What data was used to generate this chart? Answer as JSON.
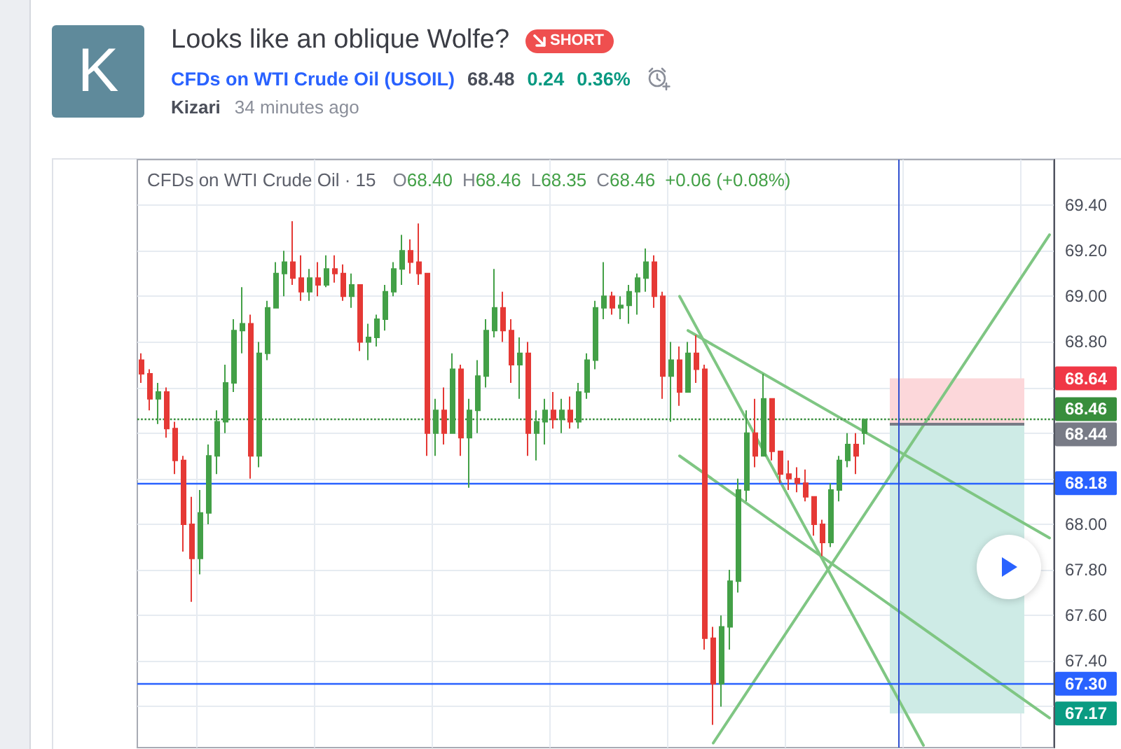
{
  "chart_data": {
    "type": "candlestick",
    "title": "Looks like an oblique Wolfe?",
    "subtitle": "CFDs on WTI Crude Oil (USOIL)",
    "annotations": [
      "K",
      "SHORT",
      "68.48",
      "0.24",
      "0.36%",
      "Kizari",
      "34 minutes ago",
      "CFDs on WTI Crude Oil · 15",
      "O68.40",
      "H68.46",
      "L68.35",
      "C68.46",
      "+0.06 (+0.08%)"
    ],
    "categories": [
      null,
      null,
      null,
      null,
      null,
      null,
      null,
      null,
      null,
      null,
      null,
      null,
      null,
      null,
      null,
      null,
      null,
      null,
      null,
      null,
      null,
      null,
      null,
      null,
      null,
      null,
      null,
      null,
      null,
      null,
      null,
      null,
      null,
      null,
      null,
      null,
      null,
      null,
      null,
      null,
      null,
      null,
      null,
      null,
      null,
      null,
      null,
      null,
      null,
      null,
      null,
      null,
      null,
      null,
      null,
      null,
      null,
      null,
      null,
      null,
      null,
      null,
      null,
      null,
      null,
      null,
      null,
      null,
      null,
      null,
      null,
      null,
      null,
      null,
      null,
      null,
      null,
      null,
      null,
      null,
      null,
      null,
      null,
      null,
      null,
      null,
      null,
      null,
      null,
      null,
      null,
      null,
      null,
      null,
      null,
      null,
      null,
      null,
      null,
      null,
      null,
      null,
      null,
      null,
      null,
      null,
      null,
      null,
      null
    ],
    "ohlc": [
      [
        68.72,
        68.75,
        68.62,
        68.66
      ],
      [
        68.66,
        68.68,
        68.5,
        68.55
      ],
      [
        68.55,
        68.62,
        68.44,
        68.58
      ],
      [
        68.58,
        68.6,
        68.38,
        68.42
      ],
      [
        68.42,
        68.45,
        68.22,
        68.28
      ],
      [
        68.28,
        68.3,
        67.88,
        68.0
      ],
      [
        68.0,
        68.12,
        67.66,
        67.85
      ],
      [
        67.85,
        68.15,
        67.78,
        68.05
      ],
      [
        68.05,
        68.35,
        68.0,
        68.3
      ],
      [
        68.3,
        68.5,
        68.22,
        68.45
      ],
      [
        68.45,
        68.7,
        68.4,
        68.62
      ],
      [
        68.62,
        68.9,
        68.58,
        68.85
      ],
      [
        68.85,
        69.04,
        68.75,
        68.88
      ],
      [
        68.88,
        68.92,
        68.2,
        68.3
      ],
      [
        68.3,
        68.8,
        68.25,
        68.75
      ],
      [
        68.75,
        68.98,
        68.72,
        68.95
      ],
      [
        68.95,
        69.15,
        68.95,
        69.1
      ],
      [
        69.1,
        69.2,
        69.0,
        69.15
      ],
      [
        69.15,
        69.33,
        69.05,
        69.08
      ],
      [
        69.08,
        69.18,
        68.98,
        69.02
      ],
      [
        69.02,
        69.12,
        68.98,
        69.08
      ],
      [
        69.08,
        69.15,
        69.0,
        69.05
      ],
      [
        69.05,
        69.18,
        69.04,
        69.12
      ],
      [
        69.12,
        69.18,
        69.06,
        69.1
      ],
      [
        69.1,
        69.14,
        68.98,
        69.0
      ],
      [
        69.0,
        69.1,
        68.95,
        69.05
      ],
      [
        69.05,
        69.05,
        68.76,
        68.8
      ],
      [
        68.8,
        68.88,
        68.72,
        68.82
      ],
      [
        68.82,
        68.92,
        68.78,
        68.9
      ],
      [
        68.9,
        69.05,
        68.85,
        69.02
      ],
      [
        69.02,
        69.15,
        69.0,
        69.12
      ],
      [
        69.12,
        69.27,
        69.05,
        69.2
      ],
      [
        69.2,
        69.25,
        69.1,
        69.15
      ],
      [
        69.15,
        69.32,
        69.05,
        69.1
      ],
      [
        69.1,
        69.1,
        68.3,
        68.4
      ],
      [
        68.4,
        68.55,
        68.3,
        68.5
      ],
      [
        68.5,
        68.6,
        68.35,
        68.4
      ],
      [
        68.4,
        68.75,
        68.4,
        68.68
      ],
      [
        68.68,
        68.7,
        68.3,
        68.38
      ],
      [
        68.38,
        68.55,
        68.16,
        68.5
      ],
      [
        68.5,
        68.72,
        68.4,
        68.65
      ],
      [
        68.65,
        68.9,
        68.6,
        68.85
      ],
      [
        68.85,
        69.12,
        68.82,
        68.95
      ],
      [
        68.95,
        69.02,
        68.8,
        68.85
      ],
      [
        68.85,
        68.9,
        68.62,
        68.7
      ],
      [
        68.7,
        68.82,
        68.55,
        68.75
      ],
      [
        68.75,
        68.8,
        68.3,
        68.4
      ],
      [
        68.4,
        68.5,
        68.28,
        68.45
      ],
      [
        68.45,
        68.55,
        68.35,
        68.5
      ],
      [
        68.5,
        68.58,
        68.42,
        68.46
      ],
      [
        68.46,
        68.55,
        68.4,
        68.5
      ],
      [
        68.5,
        68.56,
        68.42,
        68.45
      ],
      [
        68.45,
        68.62,
        68.42,
        68.58
      ],
      [
        68.58,
        68.75,
        68.55,
        68.72
      ],
      [
        68.72,
        68.98,
        68.68,
        68.95
      ],
      [
        68.95,
        69.15,
        68.9,
        69.0
      ],
      [
        69.0,
        69.02,
        68.92,
        68.95
      ],
      [
        68.95,
        69.0,
        68.9,
        68.96
      ],
      [
        68.96,
        69.05,
        68.88,
        69.02
      ],
      [
        69.02,
        69.1,
        68.92,
        69.08
      ],
      [
        69.08,
        69.21,
        69.02,
        69.15
      ],
      [
        69.15,
        69.18,
        68.95,
        69.0
      ],
      [
        69.0,
        69.02,
        68.55,
        68.65
      ],
      [
        68.65,
        68.8,
        68.45,
        68.72
      ],
      [
        68.72,
        68.78,
        68.52,
        68.58
      ],
      [
        68.58,
        68.8,
        68.58,
        68.75
      ],
      [
        68.75,
        68.83,
        68.62,
        68.68
      ],
      [
        68.68,
        68.7,
        67.45,
        67.5
      ],
      [
        67.5,
        67.55,
        67.12,
        67.3
      ],
      [
        67.3,
        67.6,
        67.2,
        67.55
      ],
      [
        67.55,
        67.8,
        67.45,
        67.75
      ],
      [
        67.75,
        68.2,
        67.7,
        68.15
      ],
      [
        68.15,
        68.5,
        68.1,
        68.4
      ],
      [
        68.4,
        68.55,
        68.25,
        68.3
      ],
      [
        68.3,
        68.66,
        68.3,
        68.55
      ],
      [
        68.55,
        68.55,
        68.28,
        68.32
      ],
      [
        68.32,
        68.32,
        68.18,
        68.22
      ],
      [
        68.22,
        68.28,
        68.15,
        68.2
      ],
      [
        68.2,
        68.25,
        68.14,
        68.18
      ],
      [
        68.18,
        68.24,
        68.1,
        68.12
      ],
      [
        68.12,
        68.12,
        67.95,
        68.0
      ],
      [
        68.0,
        68.02,
        67.86,
        67.92
      ],
      [
        67.92,
        68.18,
        67.9,
        68.15
      ],
      [
        68.15,
        68.3,
        68.1,
        68.28
      ],
      [
        68.28,
        68.4,
        68.25,
        68.35
      ],
      [
        68.35,
        68.4,
        68.22,
        68.3
      ],
      [
        68.4,
        68.46,
        68.35,
        68.46
      ],
      null,
      null,
      null,
      null,
      null,
      null,
      null,
      null,
      null,
      null,
      null,
      null,
      null,
      null,
      null,
      null,
      null,
      null,
      null,
      null,
      null,
      null
    ],
    "colors": [
      "#e53935",
      "#e53935",
      "#43a047",
      "#e53935",
      "#e53935",
      "#e53935",
      "#e53935",
      "#43a047",
      "#43a047",
      "#43a047",
      "#43a047",
      "#43a047",
      "#43a047",
      "#e53935",
      "#43a047",
      "#43a047",
      "#43a047",
      "#43a047",
      "#e53935",
      "#e53935",
      "#43a047",
      "#e53935",
      "#43a047",
      "#e53935",
      "#e53935",
      "#43a047",
      "#e53935",
      "#43a047",
      "#43a047",
      "#43a047",
      "#43a047",
      "#43a047",
      "#e53935",
      "#e53935",
      "#e53935",
      "#43a047",
      "#e53935",
      "#43a047",
      "#e53935",
      "#43a047",
      "#43a047",
      "#43a047",
      "#43a047",
      "#e53935",
      "#e53935",
      "#43a047",
      "#e53935",
      "#43a047",
      "#43a047",
      "#e53935",
      "#43a047",
      "#e53935",
      "#43a047",
      "#43a047",
      "#43a047",
      "#43a047",
      "#e53935",
      "#43a047",
      "#43a047",
      "#43a047",
      "#43a047",
      "#e53935",
      "#e53935",
      "#43a047",
      "#e53935",
      "#43a047",
      "#e53935",
      "#e53935",
      "#e53935",
      "#43a047",
      "#43a047",
      "#43a047",
      "#43a047",
      "#e53935",
      "#43a047",
      "#e53935",
      "#e53935",
      "#e53935",
      "#e53935",
      "#e53935",
      "#e53935",
      "#e53935",
      "#43a047",
      "#43a047",
      "#43a047",
      "#e53935",
      "#43a047",
      null,
      null,
      null,
      null,
      null,
      null,
      null,
      null,
      null,
      null,
      null,
      null,
      null,
      null,
      null,
      null,
      null,
      null,
      null,
      null,
      null,
      null
    ],
    "series": [
      {
        "type": "line",
        "color": "#7fc683",
        "values": [
          null,
          null,
          null,
          null,
          null,
          null,
          null,
          null,
          null,
          null,
          null,
          null,
          null,
          null,
          null,
          null,
          null,
          null,
          null,
          null,
          null,
          null,
          null,
          null,
          null,
          null,
          null,
          null,
          null,
          null,
          null,
          null,
          null,
          null,
          null,
          null,
          null,
          null,
          null,
          null,
          null,
          null,
          null,
          null,
          null,
          null,
          null,
          null,
          null,
          null,
          null,
          null,
          null,
          null,
          null,
          null,
          null,
          null,
          null,
          null,
          null,
          null,
          null,
          null,
          69.0,
          null,
          null,
          null,
          null,
          null,
          null,
          null,
          null,
          null,
          null,
          null,
          null,
          null,
          null,
          null,
          null,
          null,
          null,
          null,
          null,
          null,
          null,
          null,
          null,
          null,
          null,
          null,
          null,
          67.03,
          null,
          null,
          null,
          null,
          null,
          null,
          null,
          null,
          null,
          null,
          null,
          null,
          null,
          null,
          null
        ]
      },
      {
        "type": "line",
        "color": "#7fc683",
        "values": [
          null,
          null,
          null,
          null,
          null,
          null,
          null,
          null,
          null,
          null,
          null,
          null,
          null,
          null,
          null,
          null,
          null,
          null,
          null,
          null,
          null,
          null,
          null,
          null,
          null,
          null,
          null,
          null,
          null,
          null,
          null,
          null,
          null,
          null,
          null,
          null,
          null,
          null,
          null,
          null,
          null,
          null,
          null,
          null,
          null,
          null,
          null,
          null,
          null,
          null,
          null,
          null,
          null,
          null,
          null,
          null,
          null,
          null,
          null,
          null,
          null,
          null,
          null,
          null,
          null,
          68.85,
          null,
          null,
          null,
          null,
          null,
          null,
          null,
          null,
          null,
          null,
          null,
          null,
          null,
          null,
          null,
          null,
          null,
          null,
          null,
          null,
          null,
          null,
          null,
          null,
          null,
          null,
          null,
          null,
          null,
          null,
          null,
          null,
          null,
          null,
          null,
          null,
          null,
          null,
          null,
          null,
          null,
          null,
          67.94
        ]
      },
      {
        "type": "line",
        "color": "#7fc683",
        "values": [
          null,
          null,
          null,
          null,
          null,
          null,
          null,
          null,
          null,
          null,
          null,
          null,
          null,
          null,
          null,
          null,
          null,
          null,
          null,
          null,
          null,
          null,
          null,
          null,
          null,
          null,
          null,
          null,
          null,
          null,
          null,
          null,
          null,
          null,
          null,
          null,
          null,
          null,
          null,
          null,
          null,
          null,
          null,
          null,
          null,
          null,
          null,
          null,
          null,
          null,
          null,
          null,
          null,
          null,
          null,
          null,
          null,
          null,
          null,
          null,
          null,
          null,
          null,
          null,
          68.3,
          null,
          null,
          null,
          null,
          null,
          null,
          null,
          null,
          null,
          null,
          null,
          null,
          null,
          null,
          null,
          null,
          null,
          null,
          null,
          null,
          null,
          null,
          null,
          null,
          null,
          null,
          null,
          null,
          null,
          null,
          null,
          null,
          null,
          null,
          null,
          null,
          null,
          null,
          null,
          null,
          null,
          null,
          null,
          67.15
        ]
      },
      {
        "type": "line",
        "color": "#7fc683",
        "values": [
          null,
          null,
          null,
          null,
          null,
          null,
          null,
          null,
          null,
          null,
          null,
          null,
          null,
          null,
          null,
          null,
          null,
          null,
          null,
          null,
          null,
          null,
          null,
          null,
          null,
          null,
          null,
          null,
          null,
          null,
          null,
          null,
          null,
          null,
          null,
          null,
          null,
          null,
          null,
          null,
          null,
          null,
          null,
          null,
          null,
          null,
          null,
          null,
          null,
          null,
          null,
          null,
          null,
          null,
          null,
          null,
          null,
          null,
          null,
          null,
          null,
          null,
          null,
          null,
          null,
          null,
          null,
          null,
          67.04,
          null,
          null,
          null,
          null,
          null,
          null,
          null,
          null,
          null,
          null,
          null,
          null,
          null,
          null,
          null,
          null,
          null,
          null,
          null,
          null,
          null,
          null,
          null,
          null,
          null,
          null,
          null,
          null,
          null,
          null,
          null,
          null,
          null,
          null,
          null,
          null,
          null,
          null,
          null,
          69.27
        ]
      }
    ],
    "ylim": [
      67.02,
      69.6
    ],
    "yticks": [
      {
        "value": 67.2,
        "label": null
      },
      {
        "value": 67.4,
        "label": "67.40"
      },
      {
        "value": 67.6,
        "label": "67.60"
      },
      {
        "value": 67.8,
        "label": "67.80"
      },
      {
        "value": 68,
        "label": "68.00"
      },
      {
        "value": 68.2,
        "label": null
      },
      {
        "value": 68.4,
        "label": null
      },
      {
        "value": 68.6,
        "label": null
      },
      {
        "value": 68.8,
        "label": "68.80"
      },
      {
        "value": 69,
        "label": "69.00"
      },
      {
        "value": 69.2,
        "label": "69.20"
      },
      {
        "value": 69.4,
        "label": "69.40"
      }
    ],
    "tick_labels": "y",
    "grid": true,
    "ref_lines": [
      {
        "axis": "y",
        "value": 68.46,
        "label": "68.46",
        "color": "#388e3c",
        "line_style": "dotted"
      },
      {
        "axis": "y",
        "value": 68.44,
        "label": "68.44",
        "color": "#787b86"
      },
      {
        "axis": "y",
        "value": 68.18,
        "label": "68.18",
        "color": "#2962ff"
      },
      {
        "axis": "y",
        "value": 67.3,
        "label": "67.30",
        "color": "#2962ff"
      }
    ],
    "bands": [
      {
        "axis": "y",
        "from": 68.44,
        "to": 68.64,
        "label": "68.64",
        "color": "#fcd7da"
      },
      {
        "axis": "y",
        "from": 68.44,
        "to": 67.17,
        "label": "67.17",
        "color": "#ceebe6"
      }
    ]
  }
}
